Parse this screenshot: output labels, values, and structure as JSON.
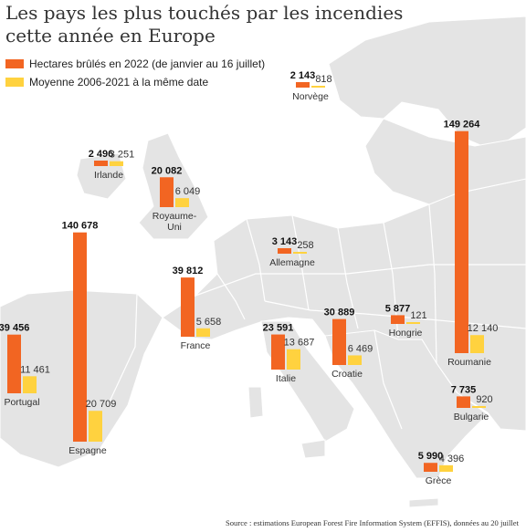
{
  "title_line1": "Les pays les plus touchés par les incendies",
  "title_line2": "cette année en Europe",
  "legend": [
    {
      "label": "Hectares brûlés en 2022 (de janvier au 16 juillet)",
      "color": "#f26522"
    },
    {
      "label": "Moyenne 2006-2021 à la même date",
      "color": "#ffd23f"
    }
  ],
  "source": "Source : estimations European Forest Fire Information System (EFFIS), données au 20 juillet",
  "colors": {
    "land": "#e4e4e4",
    "border": "#ffffff",
    "burned": "#f26522",
    "average": "#ffd23f"
  },
  "chart_data": {
    "type": "bar",
    "title": "Les pays les plus touchés par les incendies cette année en Europe",
    "series": [
      {
        "name": "Hectares brûlés en 2022 (de janvier au 16 juillet)"
      },
      {
        "name": "Moyenne 2006-2021 à la même date"
      }
    ],
    "countries": [
      {
        "name": "Norvège",
        "v2022": 2143,
        "avg": 818,
        "v2022_label": "2 143",
        "avg_label": "818"
      },
      {
        "name": "Irlande",
        "v2022": 2496,
        "avg": 3251,
        "v2022_label": "2 496",
        "avg_label": "3 251"
      },
      {
        "name": "Royaume-Uni",
        "v2022": 20082,
        "avg": 6049,
        "v2022_label": "20 082",
        "avg_label": "6 049"
      },
      {
        "name": "Espagne",
        "v2022": 140678,
        "avg": 20709,
        "v2022_label": "140 678",
        "avg_label": "20 709"
      },
      {
        "name": "Portugal",
        "v2022": 39456,
        "avg": 11461,
        "v2022_label": "39 456",
        "avg_label": "11 461"
      },
      {
        "name": "France",
        "v2022": 39812,
        "avg": 5658,
        "v2022_label": "39 812",
        "avg_label": "5 658"
      },
      {
        "name": "Allemagne",
        "v2022": 3143,
        "avg": 258,
        "v2022_label": "3 143",
        "avg_label": "258"
      },
      {
        "name": "Italie",
        "v2022": 23591,
        "avg": 13687,
        "v2022_label": "23 591",
        "avg_label": "13 687"
      },
      {
        "name": "Croatie",
        "v2022": 30889,
        "avg": 6469,
        "v2022_label": "30 889",
        "avg_label": "6 469"
      },
      {
        "name": "Hongrie",
        "v2022": 5877,
        "avg": 121,
        "v2022_label": "5 877",
        "avg_label": "121"
      },
      {
        "name": "Roumanie",
        "v2022": 149264,
        "avg": 12140,
        "v2022_label": "149 264",
        "avg_label": "12 140"
      },
      {
        "name": "Bulgarie",
        "v2022": 7735,
        "avg": 920,
        "v2022_label": "7 735",
        "avg_label": "920"
      },
      {
        "name": "Grèce",
        "v2022": 5990,
        "avg": 4396,
        "v2022_label": "5 990",
        "avg_label": "4 396"
      }
    ]
  }
}
